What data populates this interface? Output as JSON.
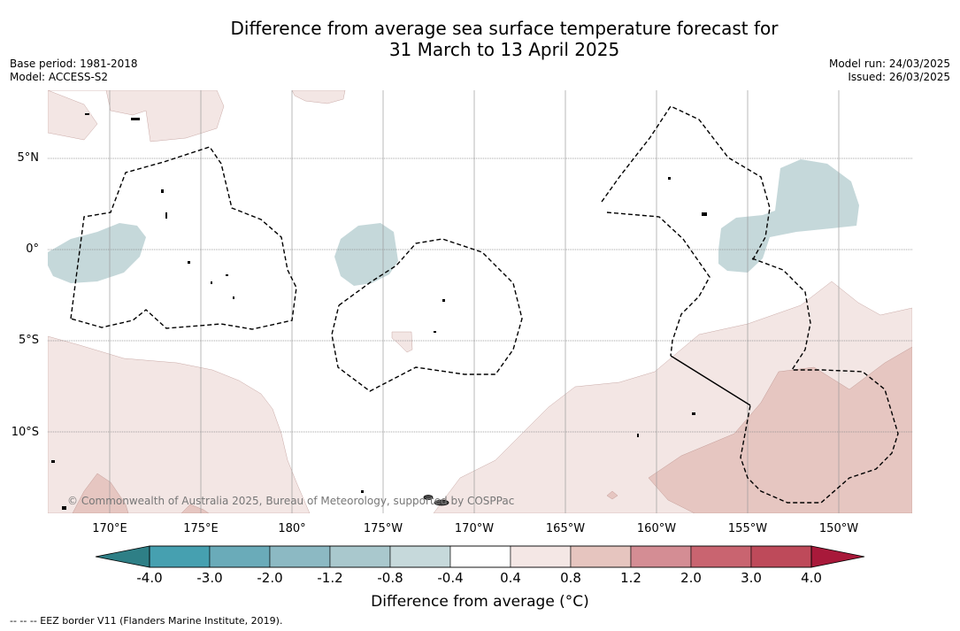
{
  "header": {
    "title_line1": "Difference from average sea surface temperature forecast for",
    "title_line2": "31 March to 13 April 2025",
    "base_period": "Base period: 1981-2018",
    "model": "Model: ACCESS-S2",
    "model_run": "Model run: 24/03/2025",
    "issued": "Issued: 26/03/2025"
  },
  "map": {
    "lat_labels": [
      "5°N",
      "0°",
      "5°S",
      "10°S"
    ],
    "lon_labels": [
      "170°E",
      "175°E",
      "180°",
      "175°W",
      "170°W",
      "165°W",
      "160°W",
      "155°W",
      "150°W"
    ],
    "copyright": "© Commonwealth of Australia 2025, Bureau of Meteorology, supported by COSPPac",
    "colors": {
      "anomaly_minus_0_8_to_minus_0_4": "#c5d8da",
      "anomaly_0_4_to_0_8": "#f3e6e4",
      "anomaly_0_8_to_1_2": "#e6c6c1",
      "eez_border": "#000000",
      "grid": "#888888"
    }
  },
  "colorbar": {
    "ticks": [
      "-4.0",
      "-3.0",
      "-2.0",
      "-1.2",
      "-0.8",
      "-0.4",
      "0.4",
      "0.8",
      "1.2",
      "2.0",
      "3.0",
      "4.0"
    ],
    "colors": [
      "#2e7f86",
      "#46a0b0",
      "#6aabb9",
      "#8cb9c3",
      "#a9c8cd",
      "#c6d9db",
      "#ffffff",
      "#f4e7e5",
      "#e6c5bf",
      "#d48d94",
      "#c96470",
      "#be4a5a",
      "#a8193a"
    ],
    "label": "Difference from average ($^\\circ$C)",
    "label_display": "Difference from average (°C)"
  },
  "footer": {
    "eez_note": "--  --  -- EEZ border V11 (Flanders Marine Institute, 2019)."
  }
}
